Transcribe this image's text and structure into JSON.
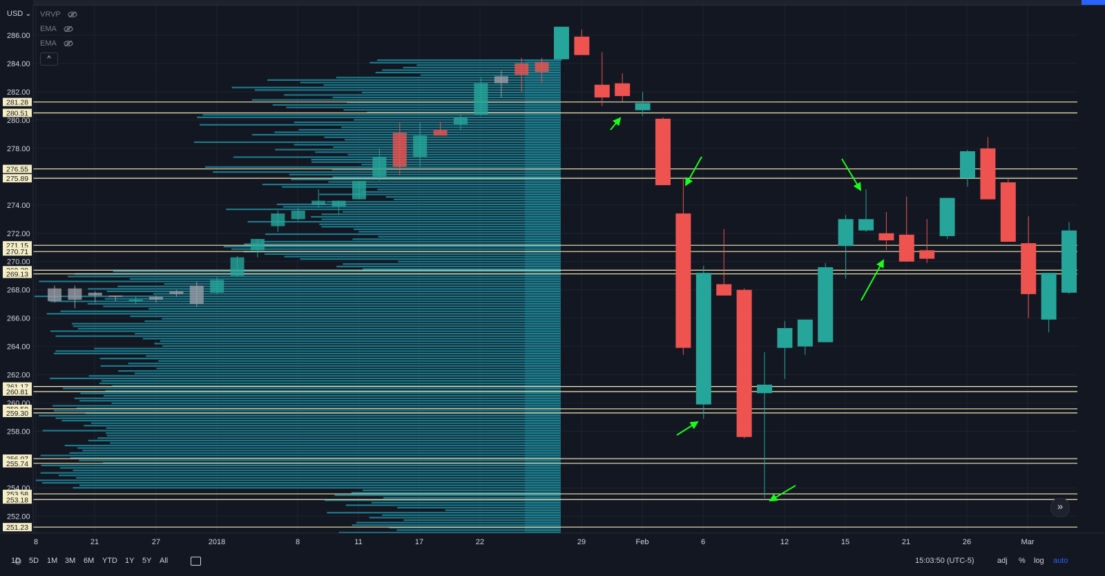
{
  "toolbar": {
    "currency": "USD",
    "indicators": [
      "VRVP",
      "EMA",
      "EMA"
    ],
    "collapse_label": "^",
    "scroll_label": "»"
  },
  "bottom": {
    "ranges": [
      "1D",
      "5D",
      "1M",
      "3M",
      "6M",
      "YTD",
      "1Y",
      "5Y",
      "All"
    ],
    "time": "15:03:50 (UTC-5)",
    "adj": "adj",
    "percent": "%",
    "log": "log",
    "auto": "auto"
  },
  "colors": {
    "background": "#131722",
    "up": "#26a69a",
    "down": "#ef5350",
    "volume_profile": "#1e8c9e",
    "level_line": "#f6edb8",
    "arrow": "#1aff1a",
    "axis_text": "#d1d4dc"
  },
  "chart_data": {
    "type": "candlestick",
    "y_ticks": [
      "286.00",
      "284.00",
      "282.00",
      "280.00",
      "278.00",
      "276.00",
      "274.00",
      "272.00",
      "270.00",
      "268.00",
      "266.00",
      "264.00",
      "262.00",
      "260.00",
      "258.00",
      "256.00",
      "254.00",
      "252.00"
    ],
    "x_labels": [
      "8",
      "21",
      "27",
      "2018",
      "8",
      "11",
      "17",
      "22",
      "29",
      "Feb",
      "6",
      "12",
      "15",
      "21",
      "26",
      "Mar"
    ],
    "ylim": [
      250.8,
      288.1
    ],
    "level_lines": [
      {
        "price": 281.28,
        "label": "281.28"
      },
      {
        "price": 280.51,
        "label": "280.51"
      },
      {
        "price": 276.55,
        "label": "276.55"
      },
      {
        "price": 275.89,
        "label": "275.89"
      },
      {
        "price": 271.15,
        "label": "271.15"
      },
      {
        "price": 270.71,
        "label": "270.71"
      },
      {
        "price": 269.39,
        "label": "269.39"
      },
      {
        "price": 269.13,
        "label": "269.13"
      },
      {
        "price": 261.17,
        "label": "261.17"
      },
      {
        "price": 260.81,
        "label": "260.81"
      },
      {
        "price": 259.59,
        "label": "259.59"
      },
      {
        "price": 259.3,
        "label": "259.30"
      },
      {
        "price": 256.07,
        "label": "256.07"
      },
      {
        "price": 255.74,
        "label": "255.74"
      },
      {
        "price": 253.58,
        "label": "253.58"
      },
      {
        "price": 253.18,
        "label": "253.18"
      },
      {
        "price": 251.23,
        "label": "251.23"
      }
    ],
    "candles_faded": [
      {
        "o": 268.1,
        "h": 268.3,
        "l": 267.1,
        "c": 267.2,
        "d": "down"
      },
      {
        "o": 268.1,
        "h": 268.3,
        "l": 266.7,
        "c": 267.3,
        "d": "down"
      },
      {
        "o": 267.6,
        "h": 267.9,
        "l": 267.1,
        "c": 267.8,
        "d": "down"
      },
      {
        "o": 267.5,
        "h": 267.6,
        "l": 267.2,
        "c": 267.6,
        "d": "down"
      },
      {
        "o": 267.2,
        "h": 267.5,
        "l": 267.0,
        "c": 267.3,
        "d": "up"
      },
      {
        "o": 267.3,
        "h": 267.6,
        "l": 267.1,
        "c": 267.5,
        "d": "down"
      },
      {
        "o": 267.9,
        "h": 268.0,
        "l": 267.5,
        "c": 267.7,
        "d": "down"
      },
      {
        "o": 268.3,
        "h": 268.6,
        "l": 266.8,
        "c": 267.0,
        "d": "down"
      },
      {
        "o": 267.8,
        "h": 268.9,
        "l": 267.7,
        "c": 268.7,
        "d": "up"
      },
      {
        "o": 269.0,
        "h": 270.4,
        "l": 268.9,
        "c": 270.3,
        "d": "up"
      },
      {
        "o": 270.8,
        "h": 271.6,
        "l": 270.3,
        "c": 271.6,
        "d": "up"
      },
      {
        "o": 272.5,
        "h": 273.6,
        "l": 272.1,
        "c": 273.4,
        "d": "up"
      },
      {
        "o": 273.0,
        "h": 273.8,
        "l": 272.9,
        "c": 273.6,
        "d": "up"
      },
      {
        "o": 274.0,
        "h": 275.1,
        "l": 273.8,
        "c": 274.3,
        "d": "up"
      },
      {
        "o": 273.9,
        "h": 274.3,
        "l": 273.3,
        "c": 274.3,
        "d": "up"
      },
      {
        "o": 274.4,
        "h": 275.7,
        "l": 274.4,
        "c": 275.7,
        "d": "up"
      },
      {
        "o": 276.0,
        "h": 278.0,
        "l": 275.7,
        "c": 277.4,
        "d": "up"
      },
      {
        "o": 279.1,
        "h": 279.8,
        "l": 276.1,
        "c": 276.7,
        "d": "down"
      },
      {
        "o": 277.4,
        "h": 279.8,
        "l": 276.7,
        "c": 278.9,
        "d": "up"
      },
      {
        "o": 278.9,
        "h": 279.9,
        "l": 279.0,
        "c": 279.3,
        "d": "down"
      },
      {
        "o": 279.7,
        "h": 280.4,
        "l": 279.3,
        "c": 280.2,
        "d": "up"
      },
      {
        "o": 280.4,
        "h": 283.0,
        "l": 280.3,
        "c": 282.6,
        "d": "up"
      },
      {
        "o": 282.6,
        "h": 283.5,
        "l": 281.6,
        "c": 283.1,
        "d": "up"
      },
      {
        "o": 283.2,
        "h": 284.4,
        "l": 282.0,
        "c": 284.0,
        "d": "down"
      },
      {
        "o": 284.1,
        "h": 284.4,
        "l": 282.6,
        "c": 283.4,
        "d": "down"
      }
    ],
    "candles": [
      {
        "o": 284.3,
        "h": 286.6,
        "l": 284.2,
        "c": 286.6,
        "d": "up"
      },
      {
        "o": 285.9,
        "h": 286.4,
        "l": 284.6,
        "c": 284.6,
        "d": "down"
      },
      {
        "o": 282.5,
        "h": 284.8,
        "l": 281.0,
        "c": 281.6,
        "d": "down"
      },
      {
        "o": 282.6,
        "h": 283.3,
        "l": 281.3,
        "c": 281.7,
        "d": "down"
      },
      {
        "o": 280.7,
        "h": 282.0,
        "l": 280.3,
        "c": 281.2,
        "d": "up"
      },
      {
        "o": 280.1,
        "h": 280.2,
        "l": 275.4,
        "c": 275.4,
        "d": "down"
      },
      {
        "o": 273.4,
        "h": 275.9,
        "l": 263.4,
        "c": 263.9,
        "d": "down"
      },
      {
        "o": 259.9,
        "h": 269.7,
        "l": 258.9,
        "c": 269.2,
        "d": "up"
      },
      {
        "o": 268.4,
        "h": 272.3,
        "l": 267.6,
        "c": 267.6,
        "d": "down"
      },
      {
        "o": 268.0,
        "h": 268.1,
        "l": 257.5,
        "c": 257.6,
        "d": "down"
      },
      {
        "o": 260.7,
        "h": 263.6,
        "l": 253.3,
        "c": 261.3,
        "d": "up"
      },
      {
        "o": 263.9,
        "h": 265.8,
        "l": 261.7,
        "c": 265.3,
        "d": "up"
      },
      {
        "o": 264.0,
        "h": 265.9,
        "l": 263.4,
        "c": 265.9,
        "d": "up"
      },
      {
        "o": 264.3,
        "h": 269.9,
        "l": 264.4,
        "c": 269.6,
        "d": "up"
      },
      {
        "o": 271.1,
        "h": 273.3,
        "l": 268.8,
        "c": 273.0,
        "d": "up"
      },
      {
        "o": 272.2,
        "h": 275.1,
        "l": 272.1,
        "c": 273.0,
        "d": "up"
      },
      {
        "o": 272.0,
        "h": 273.5,
        "l": 270.8,
        "c": 271.5,
        "d": "down"
      },
      {
        "o": 271.9,
        "h": 274.6,
        "l": 270.0,
        "c": 270.0,
        "d": "down"
      },
      {
        "o": 270.8,
        "h": 273.0,
        "l": 269.9,
        "c": 270.2,
        "d": "down"
      },
      {
        "o": 271.8,
        "h": 274.5,
        "l": 271.6,
        "c": 274.5,
        "d": "up"
      },
      {
        "o": 275.9,
        "h": 277.9,
        "l": 275.3,
        "c": 277.8,
        "d": "up"
      },
      {
        "o": 278.0,
        "h": 278.8,
        "l": 274.4,
        "c": 274.4,
        "d": "down"
      },
      {
        "o": 275.6,
        "h": 275.9,
        "l": 271.4,
        "c": 271.4,
        "d": "down"
      },
      {
        "o": 271.3,
        "h": 273.2,
        "l": 266.0,
        "c": 267.7,
        "d": "down"
      },
      {
        "o": 265.9,
        "h": 269.2,
        "l": 265.0,
        "c": 269.2,
        "d": "up"
      },
      {
        "o": 267.8,
        "h": 272.8,
        "l": 267.7,
        "c": 272.2,
        "d": "up"
      }
    ]
  }
}
